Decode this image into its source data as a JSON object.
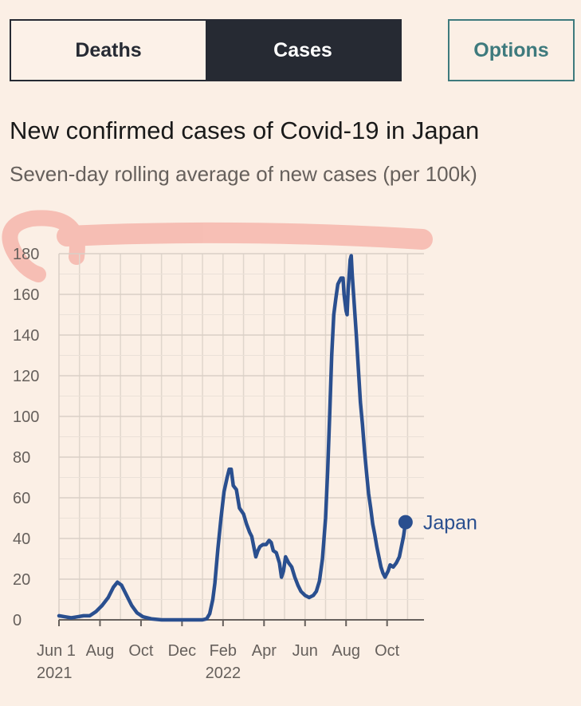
{
  "toggle": {
    "deaths_label": "Deaths",
    "cases_label": "Cases",
    "active": "Cases"
  },
  "options_label": "Options",
  "chart_data": {
    "type": "line",
    "title": "New confirmed cases of Covid-19 in Japan",
    "subtitle": "Seven-day rolling average of new cases (per 100k)",
    "ylim": [
      0,
      180
    ],
    "yticks": [
      0,
      20,
      40,
      60,
      80,
      100,
      120,
      140,
      160,
      180
    ],
    "xlim": [
      0,
      17.8
    ],
    "xlabel": "",
    "ylabel": "",
    "grid": true,
    "x_units": "months since Jun 1 2021",
    "xticks": [
      {
        "x": 0,
        "label": "Jun 1",
        "year": "2021"
      },
      {
        "x": 2,
        "label": "Aug",
        "year": ""
      },
      {
        "x": 4,
        "label": "Oct",
        "year": ""
      },
      {
        "x": 6,
        "label": "Dec",
        "year": ""
      },
      {
        "x": 8,
        "label": "Feb",
        "year": "2022"
      },
      {
        "x": 10,
        "label": "Apr",
        "year": ""
      },
      {
        "x": 12,
        "label": "Jun",
        "year": ""
      },
      {
        "x": 14,
        "label": "Aug",
        "year": ""
      },
      {
        "x": 16,
        "label": "Oct",
        "year": ""
      }
    ],
    "series": [
      {
        "name": "Japan",
        "color": "#2a4f8f",
        "points": [
          [
            0,
            2
          ],
          [
            0.3,
            1.5
          ],
          [
            0.6,
            1
          ],
          [
            0.9,
            1.5
          ],
          [
            1.2,
            2
          ],
          [
            1.5,
            2
          ],
          [
            1.8,
            4
          ],
          [
            2.1,
            7
          ],
          [
            2.4,
            11
          ],
          [
            2.65,
            16
          ],
          [
            2.85,
            18.5
          ],
          [
            3.05,
            17
          ],
          [
            3.3,
            12
          ],
          [
            3.55,
            7
          ],
          [
            3.8,
            3.5
          ],
          [
            4.1,
            1.5
          ],
          [
            4.5,
            0.5
          ],
          [
            5,
            0
          ],
          [
            6,
            0
          ],
          [
            7,
            0
          ],
          [
            7.2,
            0.5
          ],
          [
            7.35,
            3
          ],
          [
            7.5,
            10
          ],
          [
            7.6,
            18
          ],
          [
            7.75,
            35
          ],
          [
            7.9,
            50
          ],
          [
            8.05,
            63
          ],
          [
            8.2,
            70
          ],
          [
            8.3,
            74
          ],
          [
            8.4,
            74
          ],
          [
            8.5,
            66
          ],
          [
            8.65,
            64
          ],
          [
            8.8,
            55
          ],
          [
            9.0,
            52
          ],
          [
            9.15,
            47
          ],
          [
            9.3,
            43
          ],
          [
            9.4,
            41
          ],
          [
            9.5,
            36
          ],
          [
            9.6,
            31
          ],
          [
            9.7,
            34
          ],
          [
            9.8,
            36
          ],
          [
            9.95,
            37
          ],
          [
            10.1,
            37
          ],
          [
            10.25,
            39
          ],
          [
            10.35,
            38
          ],
          [
            10.45,
            34
          ],
          [
            10.6,
            33
          ],
          [
            10.75,
            28
          ],
          [
            10.85,
            21
          ],
          [
            10.95,
            24
          ],
          [
            11.05,
            31
          ],
          [
            11.2,
            28
          ],
          [
            11.35,
            26
          ],
          [
            11.5,
            21
          ],
          [
            11.65,
            17
          ],
          [
            11.8,
            14
          ],
          [
            12.0,
            12
          ],
          [
            12.2,
            11
          ],
          [
            12.4,
            12
          ],
          [
            12.55,
            14
          ],
          [
            12.7,
            19
          ],
          [
            12.85,
            30
          ],
          [
            13.0,
            50
          ],
          [
            13.1,
            73
          ],
          [
            13.2,
            100
          ],
          [
            13.3,
            130
          ],
          [
            13.4,
            150
          ],
          [
            13.5,
            158
          ],
          [
            13.6,
            165
          ],
          [
            13.75,
            168
          ],
          [
            13.85,
            168
          ],
          [
            13.9,
            160
          ],
          [
            14.0,
            152
          ],
          [
            14.05,
            150
          ],
          [
            14.1,
            162
          ],
          [
            14.2,
            177
          ],
          [
            14.25,
            179
          ],
          [
            14.3,
            170
          ],
          [
            14.4,
            155
          ],
          [
            14.5,
            140
          ],
          [
            14.6,
            123
          ],
          [
            14.7,
            107
          ],
          [
            14.8,
            96
          ],
          [
            14.9,
            83
          ],
          [
            15.0,
            72
          ],
          [
            15.1,
            62
          ],
          [
            15.2,
            55
          ],
          [
            15.3,
            47
          ],
          [
            15.4,
            42
          ],
          [
            15.5,
            36
          ],
          [
            15.6,
            31
          ],
          [
            15.7,
            26
          ],
          [
            15.8,
            23
          ],
          [
            15.9,
            21
          ],
          [
            15.95,
            22
          ],
          [
            16.05,
            24
          ],
          [
            16.15,
            27
          ],
          [
            16.3,
            26
          ],
          [
            16.45,
            28
          ],
          [
            16.6,
            31
          ],
          [
            16.7,
            36
          ],
          [
            16.8,
            41
          ],
          [
            16.9,
            48
          ]
        ],
        "end_value": 48
      }
    ]
  }
}
